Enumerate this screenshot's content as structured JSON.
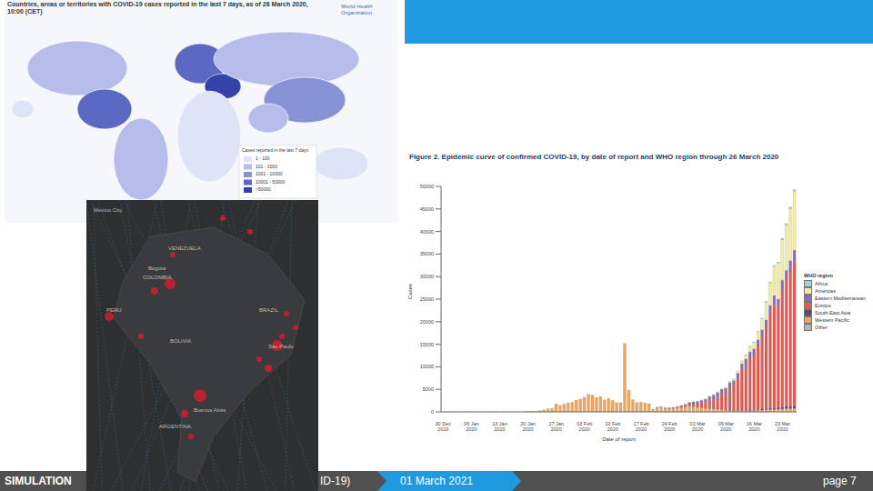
{
  "map_1": {
    "title": "Countries, areas or territories with COVID-19 cases reported in the last 7 days, as of 26 March 2020, 10:00 (CET)",
    "organization": "World Health Organization",
    "legend": {
      "title": "Cases reported in the last 7 days",
      "items": [
        "1 - 100",
        "101 - 1000",
        "1001 - 10000",
        "10001 - 50000",
        ">50000"
      ]
    }
  },
  "map_2": {
    "labels": [
      "Mexico City",
      "VENEZUELA",
      "Bogota",
      "COLOMBIA",
      "PERU",
      "BRAZIL",
      "BOLIVIA",
      "Sao Paulo",
      "Buenos Aires",
      "ARGENTINA"
    ]
  },
  "chart_data": {
    "type": "bar",
    "title": "Figure 2. Epidemic curve of confirmed COVID-19, by date of report and WHO region through 26 March 2020",
    "x_label": "Date of report",
    "y_label": "Cases",
    "stacked": true,
    "grid": false,
    "legend": "right",
    "legend_title": "WHO region",
    "ylim": [
      0,
      50000
    ],
    "yticks": [
      0,
      5000,
      10000,
      15000,
      20000,
      25000,
      30000,
      35000,
      40000,
      45000,
      50000
    ],
    "categories": [
      "30 Dec 2019",
      null,
      null,
      null,
      null,
      null,
      null,
      "06 Jan 2020",
      null,
      null,
      null,
      null,
      null,
      null,
      "13 Jan 2020",
      null,
      null,
      null,
      null,
      null,
      null,
      "20 Jan 2020",
      null,
      null,
      null,
      null,
      null,
      null,
      "27 Jan 2020",
      null,
      null,
      null,
      null,
      null,
      null,
      "03 Feb 2020",
      null,
      null,
      null,
      null,
      null,
      null,
      "10 Feb 2020",
      null,
      null,
      null,
      null,
      null,
      null,
      "17 Feb 2020",
      null,
      null,
      null,
      null,
      null,
      null,
      "24 Feb 2020",
      null,
      null,
      null,
      null,
      null,
      null,
      "02 Mar 2020",
      null,
      null,
      null,
      null,
      null,
      null,
      "09 Mar 2020",
      null,
      null,
      null,
      null,
      null,
      null,
      "16 Mar 2020",
      null,
      null,
      null,
      null,
      null,
      null,
      "23 Mar 2020",
      null,
      null,
      null
    ],
    "series": [
      {
        "name": "Africa",
        "color": "#9fd6d8",
        "values": [
          0,
          0,
          0,
          0,
          0,
          0,
          0,
          0,
          0,
          0,
          0,
          0,
          0,
          0,
          0,
          0,
          0,
          0,
          0,
          0,
          0,
          0,
          0,
          0,
          0,
          0,
          0,
          0,
          0,
          0,
          0,
          0,
          0,
          0,
          0,
          0,
          0,
          0,
          0,
          0,
          0,
          0,
          0,
          0,
          0,
          0,
          0,
          0,
          0,
          0,
          0,
          0,
          0,
          0,
          0,
          0,
          0,
          0,
          0,
          0,
          0,
          0,
          0,
          0,
          0,
          0,
          0,
          0,
          0,
          0,
          0,
          0,
          0,
          0,
          0,
          20,
          30,
          50,
          60,
          80,
          100,
          150,
          200,
          250,
          300,
          350,
          400,
          450
        ]
      },
      {
        "name": "Americas",
        "color": "#f3efa2",
        "values": [
          0,
          0,
          0,
          0,
          0,
          0,
          0,
          0,
          0,
          0,
          0,
          0,
          0,
          0,
          0,
          0,
          0,
          0,
          0,
          0,
          0,
          0,
          0,
          0,
          0,
          0,
          0,
          0,
          0,
          0,
          0,
          0,
          0,
          0,
          0,
          0,
          0,
          0,
          0,
          0,
          0,
          0,
          0,
          0,
          0,
          0,
          0,
          0,
          0,
          0,
          0,
          0,
          0,
          0,
          0,
          0,
          0,
          0,
          0,
          0,
          0,
          10,
          20,
          30,
          40,
          60,
          80,
          100,
          150,
          200,
          250,
          350,
          400,
          500,
          700,
          900,
          1200,
          1500,
          1800,
          2500,
          4000,
          5000,
          6500,
          8000,
          9000,
          10000,
          11500,
          13000
        ]
      },
      {
        "name": "Eastern Mediterranean",
        "color": "#8e6fae",
        "values": [
          0,
          0,
          0,
          0,
          0,
          0,
          0,
          0,
          0,
          0,
          0,
          0,
          0,
          0,
          0,
          0,
          0,
          0,
          0,
          0,
          0,
          0,
          0,
          0,
          0,
          0,
          0,
          0,
          0,
          0,
          0,
          0,
          0,
          0,
          0,
          0,
          0,
          0,
          0,
          0,
          0,
          0,
          0,
          0,
          0,
          0,
          0,
          0,
          0,
          0,
          0,
          0,
          5,
          20,
          30,
          40,
          60,
          80,
          100,
          150,
          200,
          250,
          400,
          500,
          600,
          700,
          900,
          1100,
          1200,
          1000,
          1000,
          1100,
          1100,
          1200,
          1300,
          1400,
          1400,
          1500,
          1500,
          1600,
          1700,
          1800,
          1900,
          2000,
          2100,
          2200,
          2300,
          2500
        ]
      },
      {
        "name": "Europe",
        "color": "#e8594f",
        "values": [
          0,
          0,
          0,
          0,
          0,
          0,
          0,
          0,
          0,
          0,
          0,
          0,
          0,
          0,
          0,
          0,
          0,
          0,
          0,
          0,
          0,
          0,
          0,
          0,
          0,
          0,
          0,
          0,
          0,
          0,
          0,
          0,
          0,
          0,
          0,
          0,
          0,
          0,
          0,
          0,
          0,
          0,
          0,
          0,
          0,
          0,
          0,
          0,
          0,
          0,
          0,
          0,
          0,
          0,
          0,
          0,
          60,
          100,
          200,
          300,
          400,
          500,
          600,
          800,
          1000,
          1300,
          1800,
          2000,
          2500,
          3500,
          3800,
          5000,
          5500,
          7000,
          9000,
          10000,
          11500,
          12000,
          14000,
          16000,
          18000,
          21000,
          23000,
          22000,
          26000,
          28000,
          30000,
          32000
        ]
      },
      {
        "name": "South-East Asia",
        "color": "#6b3f7e",
        "values": [
          0,
          0,
          0,
          0,
          0,
          0,
          0,
          0,
          0,
          0,
          0,
          0,
          0,
          0,
          0,
          0,
          0,
          0,
          0,
          0,
          0,
          0,
          0,
          0,
          0,
          0,
          0,
          0,
          0,
          0,
          0,
          0,
          0,
          0,
          0,
          0,
          0,
          0,
          0,
          0,
          0,
          0,
          0,
          0,
          0,
          0,
          0,
          0,
          0,
          0,
          0,
          0,
          0,
          0,
          0,
          0,
          0,
          0,
          0,
          0,
          0,
          0,
          0,
          0,
          0,
          0,
          0,
          0,
          0,
          0,
          20,
          30,
          40,
          50,
          60,
          80,
          100,
          120,
          150,
          200,
          250,
          300,
          350,
          400,
          450,
          500,
          550,
          600
        ]
      },
      {
        "name": "Western Pacific",
        "color": "#f2a55a",
        "values": [
          0,
          27,
          0,
          0,
          0,
          0,
          15,
          0,
          0,
          0,
          0,
          0,
          0,
          1,
          0,
          0,
          0,
          0,
          0,
          0,
          17,
          136,
          149,
          131,
          259,
          457,
          688,
          769,
          1771,
          1459,
          1737,
          1982,
          2102,
          2590,
          2829,
          3235,
          3884,
          3694,
          3143,
          3385,
          2652,
          2973,
          2467,
          2015,
          2069,
          15141,
          4823,
          2641,
          2009,
          2051,
          1897,
          1750,
          548,
          1000,
          1050,
          850,
          750,
          800,
          900,
          1000,
          1100,
          1300,
          1200,
          1000,
          950,
          800,
          700,
          650,
          600,
          500,
          400,
          350,
          300,
          350,
          300,
          250,
          300,
          350,
          350,
          400,
          450,
          500,
          550,
          600,
          650,
          700,
          700,
          750
        ]
      },
      {
        "name": "Other",
        "color": "#b5b5b5",
        "values": [
          0,
          0,
          0,
          0,
          0,
          0,
          0,
          0,
          0,
          0,
          0,
          0,
          0,
          0,
          0,
          0,
          0,
          0,
          0,
          0,
          0,
          0,
          0,
          0,
          0,
          0,
          0,
          0,
          0,
          0,
          0,
          0,
          0,
          0,
          0,
          0,
          0,
          10,
          41,
          3,
          3,
          6,
          65,
          39,
          0,
          44,
          0,
          67,
          70,
          99,
          88,
          79,
          13,
          0,
          57,
          0,
          0,
          0,
          0,
          0,
          0,
          0,
          0,
          0,
          0,
          0,
          0,
          0,
          0,
          0,
          0,
          0,
          0,
          0,
          0,
          0,
          0,
          0,
          0,
          0,
          0,
          0,
          0,
          0,
          0,
          0,
          0,
          0
        ]
      }
    ]
  },
  "footer": {
    "left": "SIMULATION",
    "middle": "ID-19)",
    "date": "01 March 2021",
    "page": "page 7"
  }
}
